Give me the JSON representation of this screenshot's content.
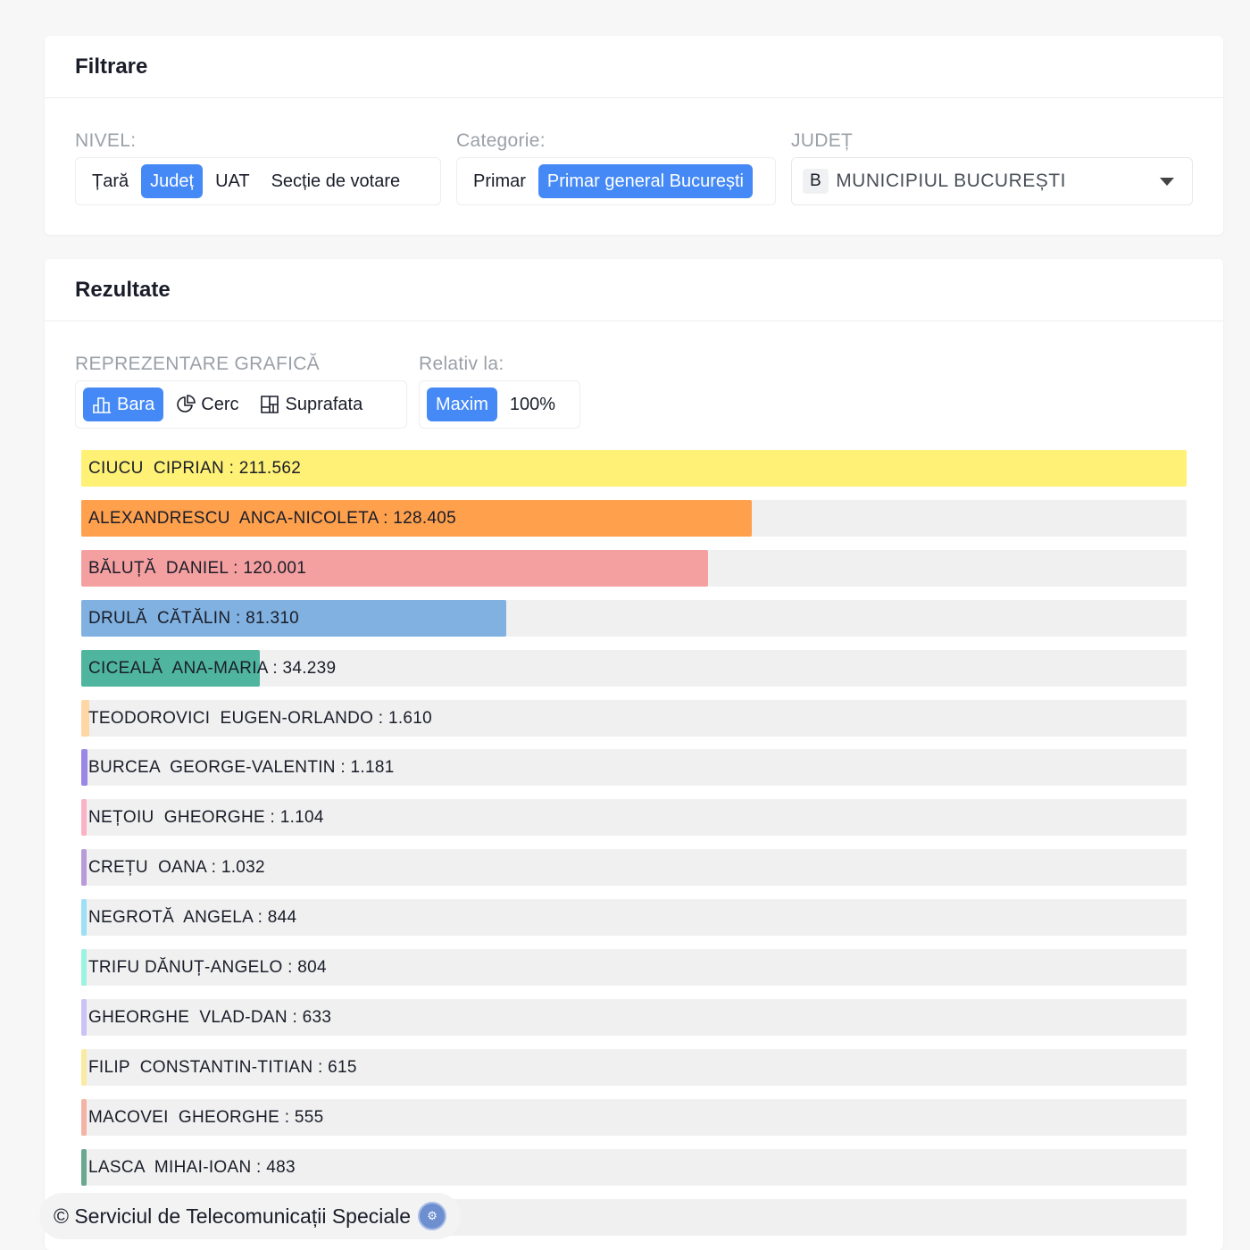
{
  "filter": {
    "title": "Filtrare",
    "nivel_label": "NIVEL:",
    "nivel_options": [
      "Țară",
      "Județ",
      "UAT",
      "Secție de votare"
    ],
    "nivel_selected": 1,
    "categorie_label": "Categorie:",
    "categorie_options": [
      "Primar",
      "Primar general București"
    ],
    "categorie_selected": 1,
    "judet_label": "JUDEȚ",
    "judet_code": "B",
    "judet_value": "MUNICIPIUL BUCUREȘTI"
  },
  "results": {
    "title": "Rezultate",
    "repr_label": "REPREZENTARE GRAFICĂ",
    "repr_options": [
      {
        "label": "Bara",
        "icon": "bar-chart-icon"
      },
      {
        "label": "Cerc",
        "icon": "pie-chart-icon"
      },
      {
        "label": "Suprafata",
        "icon": "treemap-icon"
      }
    ],
    "repr_selected": 0,
    "relativ_label": "Relativ la:",
    "relativ_options": [
      "Maxim",
      "100%"
    ],
    "relativ_selected": 0
  },
  "chart_data": {
    "type": "bar",
    "orientation": "horizontal",
    "relative_to": "Maxim",
    "items": [
      {
        "label": "CIUCU  CIPRIAN : 211.562",
        "value": 211562,
        "color": "#fff176"
      },
      {
        "label": "ALEXANDRESCU  ANCA-NICOLETA : 128.405",
        "value": 128405,
        "color": "#ffa04d"
      },
      {
        "label": "BĂLUȚĂ  DANIEL : 120.001",
        "value": 120001,
        "color": "#f5a0a0"
      },
      {
        "label": "DRULĂ  CĂTĂLIN : 81.310",
        "value": 81310,
        "color": "#80b1e0"
      },
      {
        "label": "CICEALĂ  ANA-MARIA : 34.239",
        "value": 34239,
        "color": "#4fb59e"
      },
      {
        "label": "TEODOROVICI  EUGEN-ORLANDO : 1.610",
        "value": 1610,
        "color": "#ffd6a5"
      },
      {
        "label": "BURCEA  GEORGE-VALENTIN : 1.181",
        "value": 1181,
        "color": "#9b88e6"
      },
      {
        "label": "NEȚOIU  GHEORGHE : 1.104",
        "value": 1104,
        "color": "#f9b3c5"
      },
      {
        "label": "CREȚU  OANA : 1.032",
        "value": 1032,
        "color": "#b89bd9"
      },
      {
        "label": "NEGROTĂ  ANGELA : 844",
        "value": 844,
        "color": "#9de0f5"
      },
      {
        "label": "TRIFU DĂNUȚ-ANGELO : 804",
        "value": 804,
        "color": "#9cf3df"
      },
      {
        "label": "GHEORGHE  VLAD-DAN : 633",
        "value": 633,
        "color": "#cbc2f5"
      },
      {
        "label": "FILIP  CONSTANTIN-TITIAN : 615",
        "value": 615,
        "color": "#fbeba2"
      },
      {
        "label": "MACOVEI  GHEORGHE : 555",
        "value": 555,
        "color": "#f3b3a5"
      },
      {
        "label": "LASCA  MIHAI-IOAN : 483",
        "value": 483,
        "color": "#6aa98f"
      }
    ]
  },
  "footer": {
    "text": "© Serviciul de Telecomunicații Speciale"
  },
  "colors": {
    "accent": "#4489f5"
  }
}
